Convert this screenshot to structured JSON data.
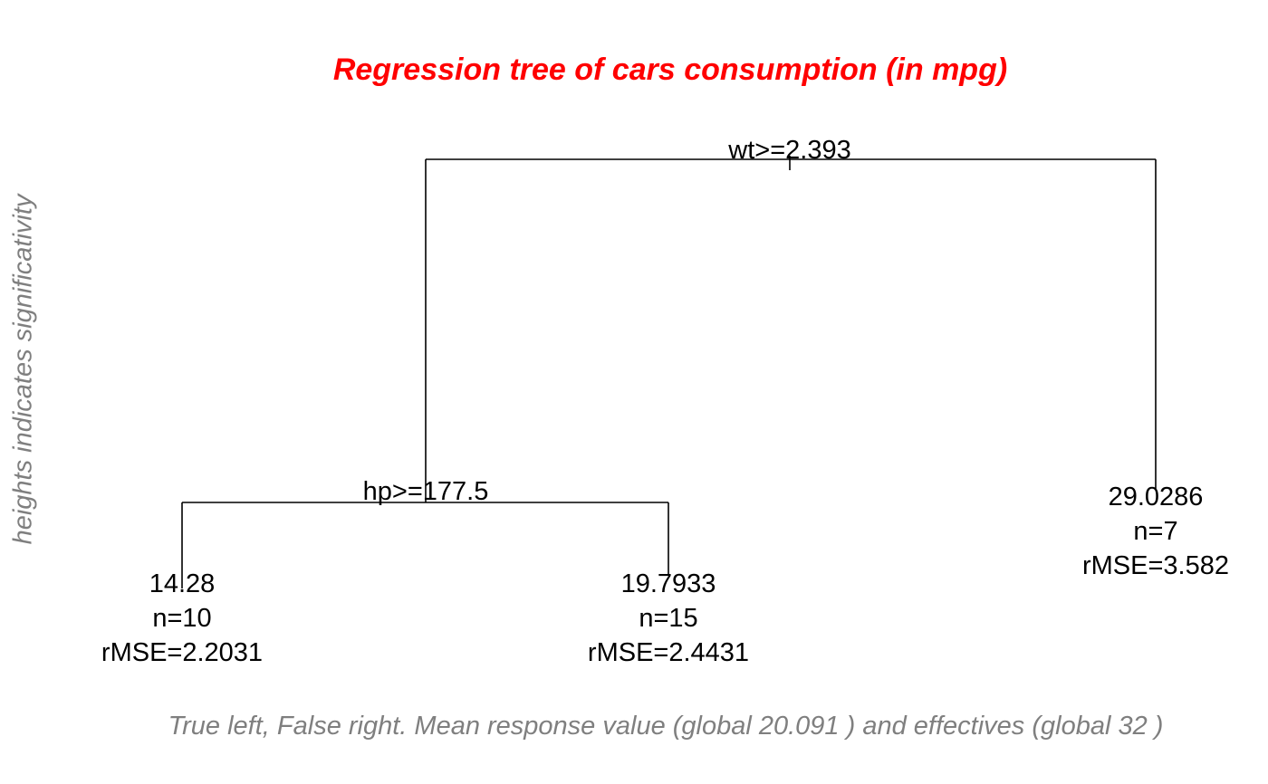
{
  "title": "Regression tree of cars consumption (in mpg)",
  "side_label": "heights indicates significativity",
  "caption": "True left, False right. Mean response value (global 20.091 ) and effectives (global  32 )",
  "tree": {
    "root_split": "wt>=2.393",
    "left_split": "hp>=177.5",
    "leaves": [
      {
        "mean": "14.28",
        "n": "n=10",
        "rmse": "rMSE=2.2031"
      },
      {
        "mean": "19.7933",
        "n": "n=15",
        "rmse": "rMSE=2.4431"
      },
      {
        "mean": "29.0286",
        "n": "n=7",
        "rmse": "rMSE=3.582"
      }
    ]
  }
}
